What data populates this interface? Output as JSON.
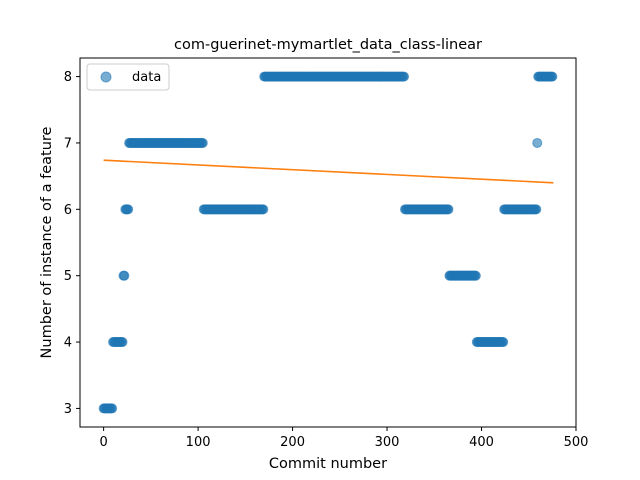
{
  "chart_data": {
    "type": "scatter",
    "title": "com-guerinet-mymartlet_data_class-linear",
    "xlabel": "Commit number",
    "ylabel": "Number of instance of a feature",
    "xlim": [
      -25,
      500
    ],
    "ylim": [
      2.72,
      8.28
    ],
    "xticks": [
      0,
      100,
      200,
      300,
      400,
      500
    ],
    "yticks": [
      3,
      4,
      5,
      6,
      7,
      8
    ],
    "grid": false,
    "legend": {
      "position": "top-left",
      "entries": [
        "data"
      ]
    },
    "colors": {
      "data": "#1f77b4",
      "fit": "#ff7f0e"
    },
    "series": [
      {
        "name": "data",
        "kind": "scatter",
        "segments": [
          {
            "x_from": 0,
            "x_to": 10,
            "y": 3
          },
          {
            "x_from": 10,
            "x_to": 21,
            "y": 4
          },
          {
            "x_from": 21,
            "x_to": 23,
            "y": 5
          },
          {
            "x_from": 23,
            "x_to": 27,
            "y": 6
          },
          {
            "x_from": 27,
            "x_to": 106,
            "y": 7
          },
          {
            "x_from": 106,
            "x_to": 170,
            "y": 6
          },
          {
            "x_from": 170,
            "x_to": 319,
            "y": 8
          },
          {
            "x_from": 319,
            "x_to": 366,
            "y": 6
          },
          {
            "x_from": 366,
            "x_to": 395,
            "y": 5
          },
          {
            "x_from": 395,
            "x_to": 424,
            "y": 4
          },
          {
            "x_from": 424,
            "x_to": 459,
            "y": 6
          },
          {
            "x_from": 459,
            "x_to": 460,
            "y": 7
          },
          {
            "x_from": 460,
            "x_to": 476,
            "y": 8
          }
        ]
      },
      {
        "name": "",
        "kind": "line",
        "x": [
          0,
          476
        ],
        "y": [
          6.74,
          6.4
        ]
      }
    ]
  }
}
